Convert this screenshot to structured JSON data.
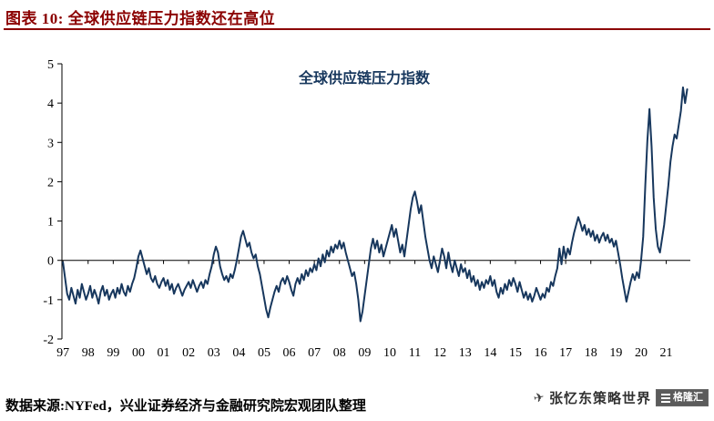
{
  "header": {
    "title": "图表 10:  全球供应链压力指数还在高位"
  },
  "footer": {
    "source": "数据来源:NYFed，兴业证券经济与金融研究院宏观团队整理",
    "watermark": "张忆东策略世界",
    "logo_text": "格隆汇"
  },
  "colors": {
    "accent_red": "#8B0000",
    "line_navy": "#17375D",
    "axis_black": "#000000"
  },
  "chart_data": {
    "type": "line",
    "title": "全球供应链压力指数",
    "xlabel": "",
    "ylabel": "",
    "ylim": [
      -2,
      5
    ],
    "y_ticks": [
      5,
      4,
      3,
      2,
      1,
      0,
      -1,
      -2
    ],
    "x_labels": [
      "97",
      "98",
      "99",
      "00",
      "01",
      "02",
      "03",
      "04",
      "05",
      "06",
      "07",
      "08",
      "09",
      "10",
      "11",
      "12",
      "13",
      "14",
      "15",
      "16",
      "17",
      "18",
      "19",
      "20",
      "21"
    ],
    "x_start_year": 1997,
    "frequency": "monthly",
    "grid": false,
    "legend_position": "none",
    "line_color": "#17375D",
    "series_name": "全球供应链压力指数",
    "values": [
      -0.05,
      -0.45,
      -0.85,
      -1.0,
      -0.7,
      -0.9,
      -1.1,
      -0.75,
      -0.95,
      -0.6,
      -0.8,
      -1.0,
      -0.85,
      -0.65,
      -0.95,
      -0.75,
      -0.9,
      -1.1,
      -0.8,
      -0.65,
      -0.9,
      -0.75,
      -1.0,
      -0.85,
      -0.75,
      -0.95,
      -0.7,
      -0.85,
      -0.6,
      -0.8,
      -0.9,
      -0.65,
      -0.8,
      -0.6,
      -0.45,
      -0.2,
      0.1,
      0.25,
      0.05,
      -0.15,
      -0.35,
      -0.2,
      -0.45,
      -0.55,
      -0.4,
      -0.6,
      -0.7,
      -0.55,
      -0.45,
      -0.65,
      -0.5,
      -0.75,
      -0.6,
      -0.85,
      -0.7,
      -0.6,
      -0.75,
      -0.9,
      -0.75,
      -0.65,
      -0.55,
      -0.7,
      -0.5,
      -0.65,
      -0.8,
      -0.65,
      -0.55,
      -0.7,
      -0.5,
      -0.6,
      -0.35,
      -0.15,
      0.15,
      0.35,
      0.2,
      -0.15,
      -0.35,
      -0.5,
      -0.4,
      -0.55,
      -0.35,
      -0.45,
      -0.25,
      0.0,
      0.3,
      0.6,
      0.75,
      0.55,
      0.35,
      0.45,
      0.2,
      0.05,
      0.15,
      -0.15,
      -0.35,
      -0.65,
      -0.95,
      -1.25,
      -1.45,
      -1.2,
      -1.0,
      -0.8,
      -0.65,
      -0.8,
      -0.55,
      -0.45,
      -0.6,
      -0.4,
      -0.55,
      -0.75,
      -0.9,
      -0.6,
      -0.45,
      -0.6,
      -0.35,
      -0.5,
      -0.25,
      -0.4,
      -0.2,
      -0.3,
      -0.1,
      -0.25,
      0.05,
      -0.15,
      0.15,
      -0.05,
      0.25,
      0.1,
      0.35,
      0.2,
      0.4,
      0.3,
      0.5,
      0.3,
      0.45,
      0.2,
      0.0,
      -0.2,
      -0.4,
      -0.3,
      -0.6,
      -1.0,
      -1.55,
      -1.3,
      -0.9,
      -0.5,
      -0.1,
      0.3,
      0.55,
      0.3,
      0.5,
      0.2,
      0.4,
      0.1,
      0.3,
      0.5,
      0.7,
      0.9,
      0.6,
      0.8,
      0.5,
      0.2,
      0.4,
      0.1,
      0.5,
      0.9,
      1.3,
      1.6,
      1.75,
      1.5,
      1.2,
      1.4,
      1.0,
      0.6,
      0.3,
      0.0,
      -0.2,
      0.1,
      -0.1,
      -0.3,
      0.0,
      0.3,
      0.1,
      -0.2,
      0.2,
      -0.1,
      -0.3,
      0.0,
      -0.2,
      -0.4,
      -0.1,
      -0.3,
      -0.2,
      -0.45,
      -0.25,
      -0.55,
      -0.4,
      -0.65,
      -0.5,
      -0.75,
      -0.55,
      -0.7,
      -0.5,
      -0.6,
      -0.4,
      -0.65,
      -0.5,
      -0.8,
      -0.95,
      -0.7,
      -0.85,
      -0.6,
      -0.75,
      -0.5,
      -0.65,
      -0.45,
      -0.6,
      -0.8,
      -0.55,
      -0.75,
      -0.95,
      -0.8,
      -1.0,
      -0.85,
      -1.05,
      -0.9,
      -0.7,
      -0.85,
      -1.0,
      -0.85,
      -0.95,
      -0.7,
      -0.8,
      -0.55,
      -0.65,
      -0.4,
      -0.2,
      0.3,
      -0.1,
      0.35,
      0.05,
      0.3,
      0.15,
      0.45,
      0.7,
      0.9,
      1.1,
      0.95,
      0.75,
      0.9,
      0.65,
      0.8,
      0.6,
      0.75,
      0.5,
      0.65,
      0.45,
      0.6,
      0.7,
      0.5,
      0.65,
      0.45,
      0.55,
      0.35,
      0.5,
      0.2,
      -0.1,
      -0.45,
      -0.75,
      -1.05,
      -0.8,
      -0.55,
      -0.35,
      -0.5,
      -0.3,
      -0.45,
      0.0,
      0.6,
      1.9,
      3.05,
      3.85,
      2.9,
      1.6,
      0.8,
      0.35,
      0.2,
      0.55,
      0.9,
      1.4,
      1.9,
      2.5,
      2.9,
      3.2,
      3.1,
      3.45,
      3.8,
      4.4,
      4.0,
      4.35
    ]
  }
}
